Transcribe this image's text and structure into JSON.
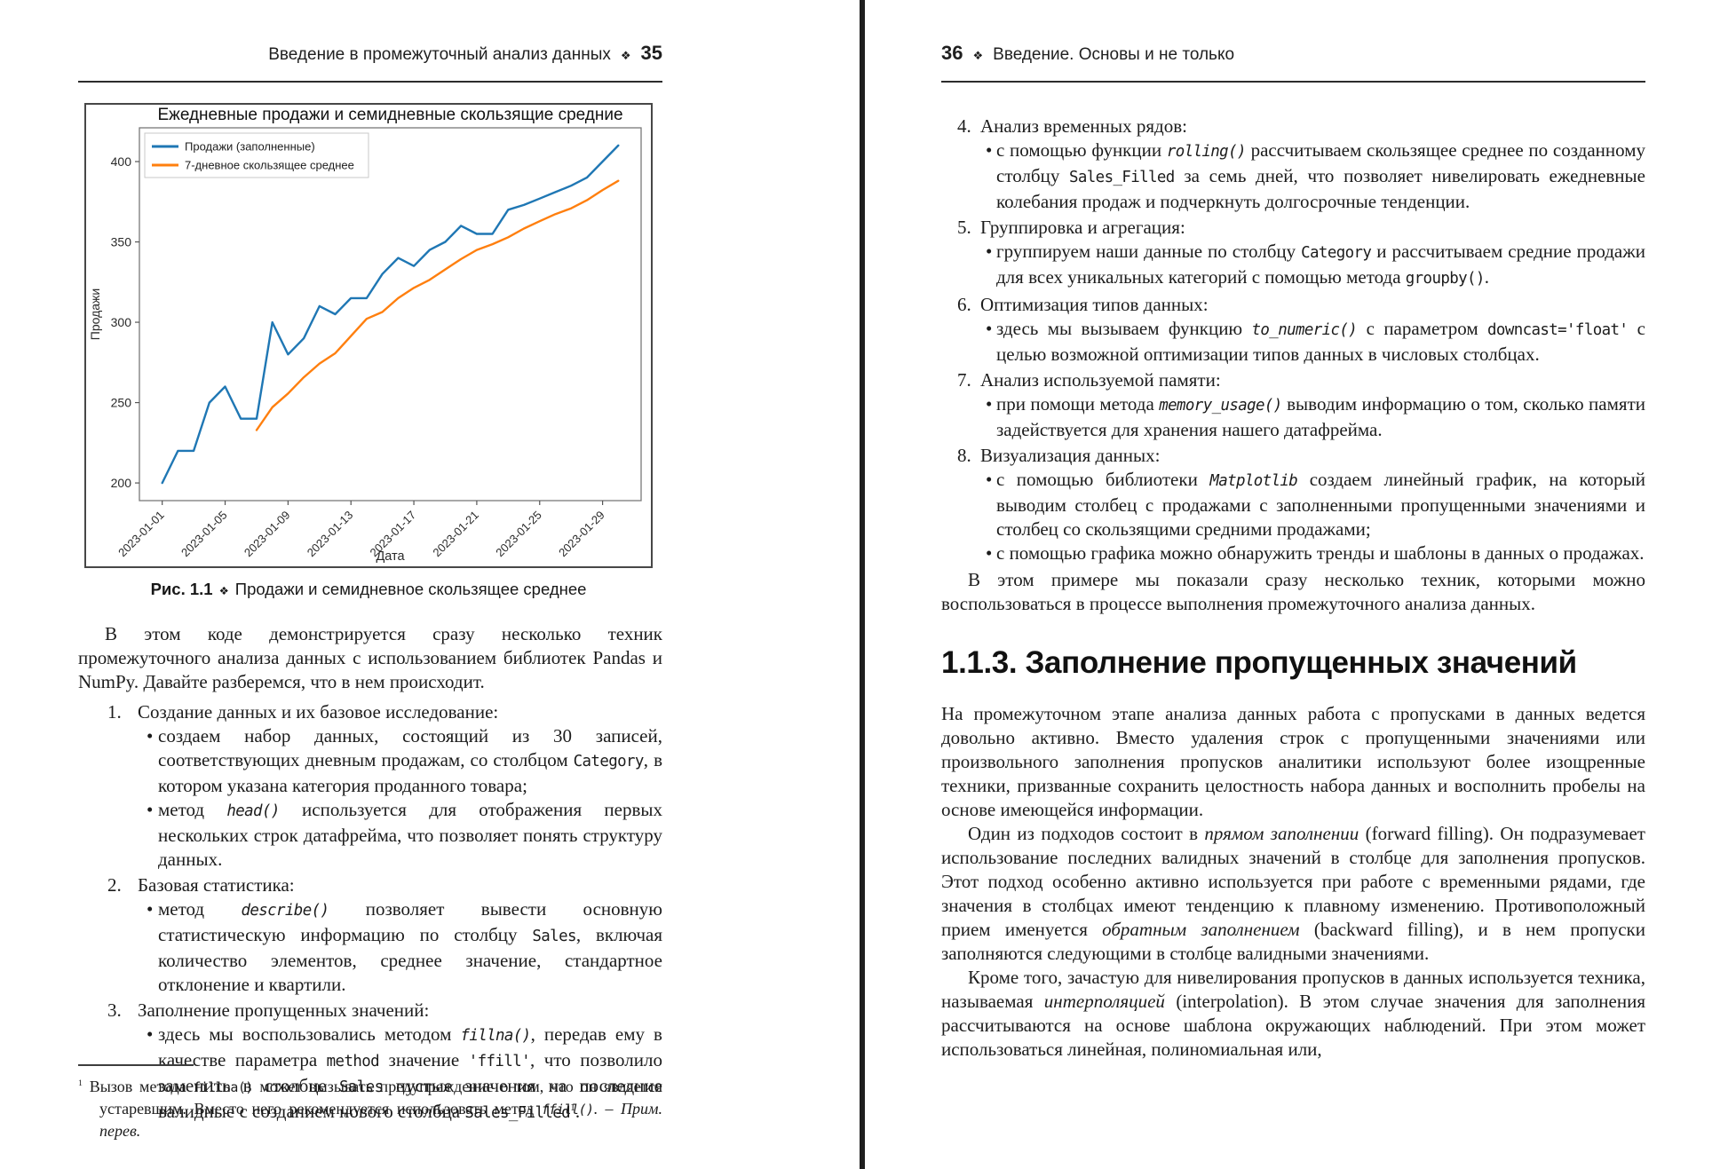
{
  "meta": {
    "bullet_char": "•",
    "accent_blue": "#1f77b4",
    "accent_orange": "#ff7f0e"
  },
  "left_page": {
    "header": {
      "title": "Введение в промежуточный анализ данных",
      "diamond": "❖",
      "page_number": "35"
    },
    "figure_caption": {
      "label": "Рис. 1.1",
      "diamond": "❖",
      "text": "Продажи и семидневное скользящее среднее"
    },
    "intro": "В этом коде демонстрируется сразу несколько техник промежуточного анализа данных с использованием библиотек Pandas и NumPy. Давайте разберемся, что в нем происходит.",
    "list": [
      {
        "num": "1.",
        "title": "Создание данных и их базовое исследование:",
        "bullets": [
          [
            {
              "t": "создаем набор данных, состоящий из 30 записей, соответствующих дневным продажам, со столбцом "
            },
            {
              "c": "Category"
            },
            {
              "t": ", в котором указана категория проданного товара;"
            }
          ],
          [
            {
              "t": "метод "
            },
            {
              "ci": "head()"
            },
            {
              "t": " используется для отображения первых нескольких строк датафрейма, что позволяет понять структуру данных."
            }
          ]
        ]
      },
      {
        "num": "2.",
        "title": "Базовая статистика:",
        "bullets": [
          [
            {
              "t": "метод "
            },
            {
              "ci": "describe()"
            },
            {
              "t": " позволяет вывести основную статистическую информацию по столбцу "
            },
            {
              "c": "Sales"
            },
            {
              "t": ", включая количество элементов, среднее значение, стандартное отклонение и квартили."
            }
          ]
        ]
      },
      {
        "num": "3.",
        "title": "Заполнение пропущенных значений:",
        "bullets": [
          [
            {
              "t": "здесь мы воспользовались методом "
            },
            {
              "ci": "fillna()"
            },
            {
              "t": ", передав ему в качестве параметра "
            },
            {
              "c": "method"
            },
            {
              "t": " значение "
            },
            {
              "c": "'ffill'"
            },
            {
              "t": ", что позволило заменить в столбце "
            },
            {
              "c": "Sales"
            },
            {
              "t": " пустые значения на последние валидные с созданием нового столбца "
            },
            {
              "c": "Sales_Filled"
            },
            {
              "sup": "1"
            },
            {
              "t": "."
            }
          ]
        ]
      }
    ],
    "footnote": [
      {
        "sup": "1"
      },
      {
        "t": " Вызов метода "
      },
      {
        "c": "fillna()"
      },
      {
        "t": " может вызывать предупреждение о том, что он является устаревшим. Вместо него рекомендуется использовать метод "
      },
      {
        "ci": "ffill()"
      },
      {
        "t": ". – "
      },
      {
        "i": "Прим. перев."
      }
    ]
  },
  "right_page": {
    "header": {
      "page_number": "36",
      "diamond": "❖",
      "title": "Введение. Основы и не только"
    },
    "list": [
      {
        "num": "4.",
        "title": "Анализ временных рядов:",
        "bullets": [
          [
            {
              "t": "с помощью функции "
            },
            {
              "ci": "rolling()"
            },
            {
              "t": " рассчитываем скользящее среднее по созданному столбцу "
            },
            {
              "c": "Sales_Filled"
            },
            {
              "t": " за семь дней, что позволяет нивелировать ежедневные колебания продаж и подчеркнуть долгосрочные тенденции."
            }
          ]
        ]
      },
      {
        "num": "5.",
        "title": "Группировка и агрегация:",
        "bullets": [
          [
            {
              "t": "группируем наши данные по столбцу "
            },
            {
              "c": "Category"
            },
            {
              "t": " и рассчитываем средние продажи для всех уникальных категорий с помощью метода "
            },
            {
              "c": "groupby()"
            },
            {
              "t": "."
            }
          ]
        ]
      },
      {
        "num": "6.",
        "title": "Оптимизация типов данных:",
        "bullets": [
          [
            {
              "t": "здесь мы вызываем функцию "
            },
            {
              "ci": "to_numeric()"
            },
            {
              "t": " с параметром "
            },
            {
              "c": "downcast='float'"
            },
            {
              "t": " с целью возможной оптимизации типов данных в числовых столбцах."
            }
          ]
        ]
      },
      {
        "num": "7.",
        "title": "Анализ используемой памяти:",
        "bullets": [
          [
            {
              "t": "при помощи метода "
            },
            {
              "ci": "memory_usage()"
            },
            {
              "t": " выводим информацию о том, сколько памяти задействуется для хранения нашего датафрейма."
            }
          ]
        ]
      },
      {
        "num": "8.",
        "title": "Визуализация данных:",
        "bullets": [
          [
            {
              "t": "с помощью библиотеки "
            },
            {
              "ci": "Matplotlib"
            },
            {
              "t": " создаем линейный график, на который выводим столбец с продажами с заполненными пропущенными значениями и столбец со скользящими средними продажами;"
            }
          ],
          [
            {
              "t": "с помощью графика можно обнаружить тренды и шаблоны в данных о продажах."
            }
          ]
        ]
      }
    ],
    "closing": "В этом примере мы показали сразу несколько техник, которыми можно воспользоваться в процессе выполнения промежуточного анализа данных.",
    "section_heading": "1.1.3. Заполнение пропущенных значений",
    "paragraphs": [
      {
        "indent": false,
        "segments": [
          {
            "t": "На промежуточном этапе анализа данных работа с пропусками в данных ведется довольно активно. Вместо удаления строк с пропущенными значениями или произвольного заполнения пропусков аналитики используют более изощренные техники, призванные сохранить целостность набора данных и восполнить пробелы на основе имеющейся информации."
          }
        ]
      },
      {
        "indent": true,
        "segments": [
          {
            "t": "Один из подходов состоит в "
          },
          {
            "i": "прямом заполнении"
          },
          {
            "t": " (forward filling). Он подразумевает использование последних валидных значений в столбце для заполнения пропусков. Этот подход особенно активно используется при работе с временными рядами, где значения в столбцах имеют тенденцию к плавному изменению. Противоположный прием именуется "
          },
          {
            "i": "обратным заполнением"
          },
          {
            "t": " (backward filling), и в нем пропуски заполняются следующими в столбце валидными значениями."
          }
        ]
      },
      {
        "indent": true,
        "segments": [
          {
            "t": "Кроме того, зачастую для нивелирования пропусков в данных используется техника, называемая "
          },
          {
            "i": "интерполяцией"
          },
          {
            "t": " (interpolation). В этом случае значения для заполнения рассчитываются на основе шаблона окружающих наблюдений. При этом может использоваться линейная, полиномиальная или,"
          }
        ]
      }
    ]
  },
  "chart_data": {
    "type": "line",
    "title": "Ежедневные продажи и семидневные скользящие средние",
    "xlabel": "Дата",
    "ylabel": "Продажи",
    "grid": false,
    "legend_position": "upper left",
    "ylim": [
      189,
      421
    ],
    "y_ticks": [
      200,
      250,
      300,
      350,
      400
    ],
    "x_tick_every": 4,
    "x": [
      "2023-01-01",
      "2023-01-02",
      "2023-01-03",
      "2023-01-04",
      "2023-01-05",
      "2023-01-06",
      "2023-01-07",
      "2023-01-08",
      "2023-01-09",
      "2023-01-10",
      "2023-01-11",
      "2023-01-12",
      "2023-01-13",
      "2023-01-14",
      "2023-01-15",
      "2023-01-16",
      "2023-01-17",
      "2023-01-18",
      "2023-01-19",
      "2023-01-20",
      "2023-01-21",
      "2023-01-22",
      "2023-01-23",
      "2023-01-24",
      "2023-01-25",
      "2023-01-26",
      "2023-01-27",
      "2023-01-28",
      "2023-01-29",
      "2023-01-30"
    ],
    "series": [
      {
        "name": "Продажи (заполненные)",
        "color": "#1f77b4",
        "values": [
          200,
          220,
          220,
          250,
          260,
          240,
          240,
          300,
          280,
          290,
          310,
          305,
          315,
          315,
          330,
          340,
          335,
          345,
          350,
          360,
          355,
          355,
          370,
          373,
          377,
          381,
          385,
          390,
          400,
          410
        ]
      },
      {
        "name": "7-дневное скользящее среднее",
        "color": "#ff7f0e",
        "values": [
          null,
          null,
          null,
          null,
          null,
          null,
          232.9,
          247.1,
          255.7,
          265.7,
          274.3,
          280.7,
          291.4,
          302.1,
          306.4,
          315.0,
          321.4,
          326.4,
          332.9,
          339.3,
          345.0,
          348.6,
          352.9,
          358.3,
          362.9,
          367.3,
          370.9,
          375.9,
          382.3,
          388.0
        ]
      }
    ]
  }
}
